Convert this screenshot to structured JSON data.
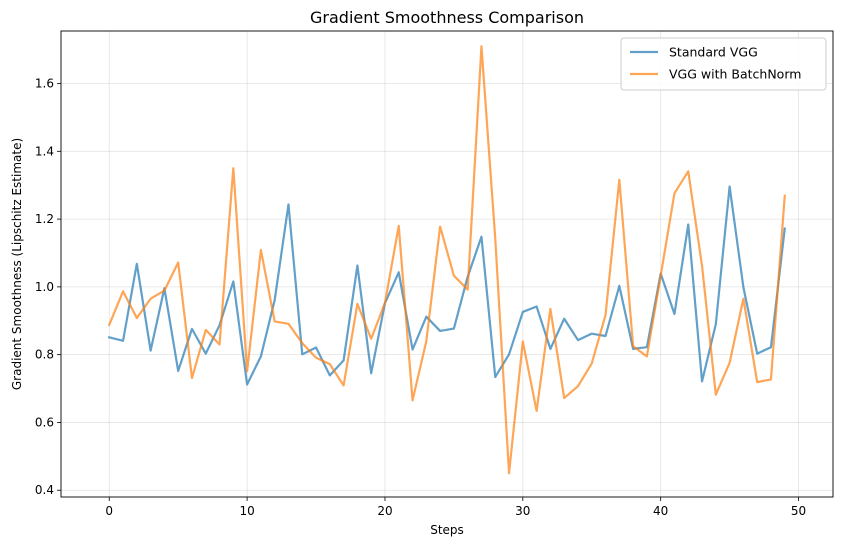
{
  "chart_data": {
    "type": "line",
    "title": "Gradient Smoothness Comparison",
    "xlabel": "Steps",
    "ylabel": "Gradient Smoothness (Lipschitz Estimate)",
    "xlim": [
      -3.5,
      52.5
    ],
    "ylim": [
      0.38,
      1.755
    ],
    "xticks": [
      0,
      10,
      20,
      30,
      40,
      50
    ],
    "yticks": [
      0.4,
      0.6,
      0.8,
      1.0,
      1.2,
      1.4,
      1.6
    ],
    "ytick_labels": [
      "0.4",
      "0.6",
      "0.8",
      "1.0",
      "1.2",
      "1.4",
      "1.6"
    ],
    "grid": true,
    "legend_position": "top-right",
    "x": [
      0,
      1,
      2,
      3,
      4,
      5,
      6,
      7,
      8,
      9,
      10,
      11,
      12,
      13,
      14,
      15,
      16,
      17,
      18,
      19,
      20,
      21,
      22,
      23,
      24,
      25,
      26,
      27,
      28,
      29,
      30,
      31,
      32,
      33,
      34,
      35,
      36,
      37,
      38,
      39,
      40,
      41,
      42,
      43,
      44,
      45,
      46,
      47,
      48,
      49
    ],
    "series": [
      {
        "name": "Standard VGG",
        "color": "#1f77b4",
        "values": [
          0.851,
          0.841,
          1.068,
          0.812,
          0.996,
          0.752,
          0.876,
          0.803,
          0.887,
          1.016,
          0.712,
          0.795,
          0.961,
          1.243,
          0.801,
          0.821,
          0.739,
          0.783,
          1.063,
          0.745,
          0.952,
          1.043,
          0.815,
          0.912,
          0.87,
          0.877,
          1.03,
          1.148,
          0.734,
          0.801,
          0.926,
          0.942,
          0.817,
          0.906,
          0.843,
          0.862,
          0.855,
          1.003,
          0.817,
          0.822,
          1.039,
          0.92,
          1.184,
          0.721,
          0.89,
          1.296,
          0.999,
          0.803,
          0.822,
          1.172
        ]
      },
      {
        "name": "VGG with BatchNorm",
        "color": "#ff7f0e",
        "values": [
          0.888,
          0.987,
          0.908,
          0.965,
          0.989,
          1.072,
          0.731,
          0.873,
          0.83,
          1.35,
          0.751,
          1.109,
          0.898,
          0.891,
          0.834,
          0.791,
          0.772,
          0.709,
          0.95,
          0.847,
          0.953,
          1.18,
          0.665,
          0.84,
          1.178,
          1.033,
          0.992,
          1.71,
          1.143,
          0.45,
          0.839,
          0.634,
          0.935,
          0.672,
          0.707,
          0.774,
          0.917,
          1.316,
          0.825,
          0.795,
          1.033,
          1.276,
          1.341,
          1.062,
          0.682,
          0.776,
          0.965,
          0.719,
          0.727,
          1.269
        ]
      }
    ]
  }
}
